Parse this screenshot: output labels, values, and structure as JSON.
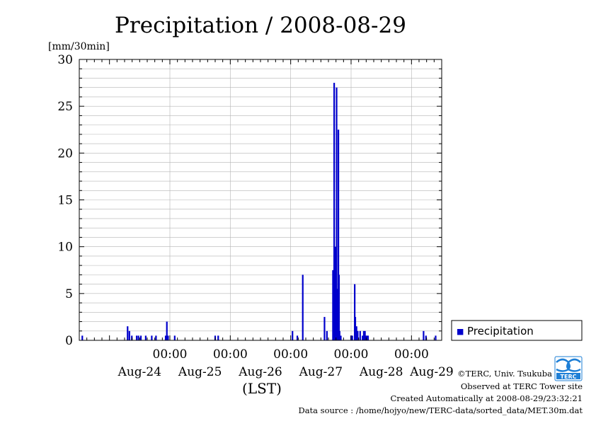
{
  "chart_data": {
    "type": "bar",
    "title": "Precipitation / 2008-08-29",
    "ylabel": "[mm/30min]",
    "xlabel": "(LST)",
    "ylim": [
      0,
      30
    ],
    "y_ticks": [
      "0",
      "5",
      "10",
      "15",
      "20",
      "25",
      "30"
    ],
    "x_range_days": [
      23.5,
      29.5
    ],
    "x_time_ticks": [
      {
        "day": 25.0,
        "label": "00:00"
      },
      {
        "day": 26.0,
        "label": "00:00"
      },
      {
        "day": 27.0,
        "label": "00:00"
      },
      {
        "day": 28.0,
        "label": "00:00"
      },
      {
        "day": 29.0,
        "label": "00:00"
      }
    ],
    "x_date_ticks": [
      {
        "day": 24.5,
        "label": "Aug-24"
      },
      {
        "day": 25.5,
        "label": "Aug-25"
      },
      {
        "day": 26.5,
        "label": "Aug-26"
      },
      {
        "day": 27.5,
        "label": "Aug-27"
      },
      {
        "day": 28.5,
        "label": "Aug-28"
      },
      {
        "day": 29.5,
        "label": "Aug-29"
      }
    ],
    "grid": true,
    "legend_position": "right",
    "series": [
      {
        "name": "Precipitation",
        "color": "#0000cc",
        "x_days": [
          23.55,
          24.3,
          24.33,
          24.37,
          24.45,
          24.48,
          24.52,
          24.6,
          24.7,
          24.77,
          24.93,
          24.95,
          24.97,
          25.08,
          25.75,
          25.8,
          27.03,
          27.11,
          27.2,
          27.56,
          27.6,
          27.7,
          27.72,
          27.74,
          27.76,
          27.77,
          27.79,
          27.8,
          27.81,
          27.83,
          28.0,
          28.02,
          28.06,
          28.07,
          28.09,
          28.11,
          28.15,
          28.19,
          28.21,
          28.23,
          28.25,
          28.26,
          28.28,
          29.2,
          29.24,
          29.4
        ],
        "values": [
          0.5,
          1.5,
          1.0,
          0.5,
          0.5,
          0.5,
          0.5,
          0.5,
          0.5,
          0.5,
          0.5,
          2.0,
          0.5,
          0.5,
          0.5,
          0.5,
          1.0,
          0.5,
          7.0,
          2.5,
          1.0,
          7.5,
          27.5,
          10.0,
          27.0,
          5.5,
          22.5,
          7.0,
          1.0,
          0.5,
          0.5,
          0.5,
          6.0,
          2.5,
          1.5,
          1.0,
          1.0,
          0.5,
          1.0,
          1.0,
          0.5,
          0.5,
          0.5,
          1.0,
          0.5,
          0.5
        ]
      }
    ]
  },
  "legend": {
    "label": "Precipitation",
    "marker": "■"
  },
  "credits": {
    "copyright": "©TERC, Univ. Tsukuba",
    "observed": "Observed at TERC Tower site",
    "created": "Created Automatically at 2008-08-29/23:32:21",
    "source": "Data source : /home/hojyo/new/TERC-data/sorted_data/MET.30m.dat"
  },
  "logo": {
    "text": "TERC",
    "color": "#1e7fd6"
  }
}
